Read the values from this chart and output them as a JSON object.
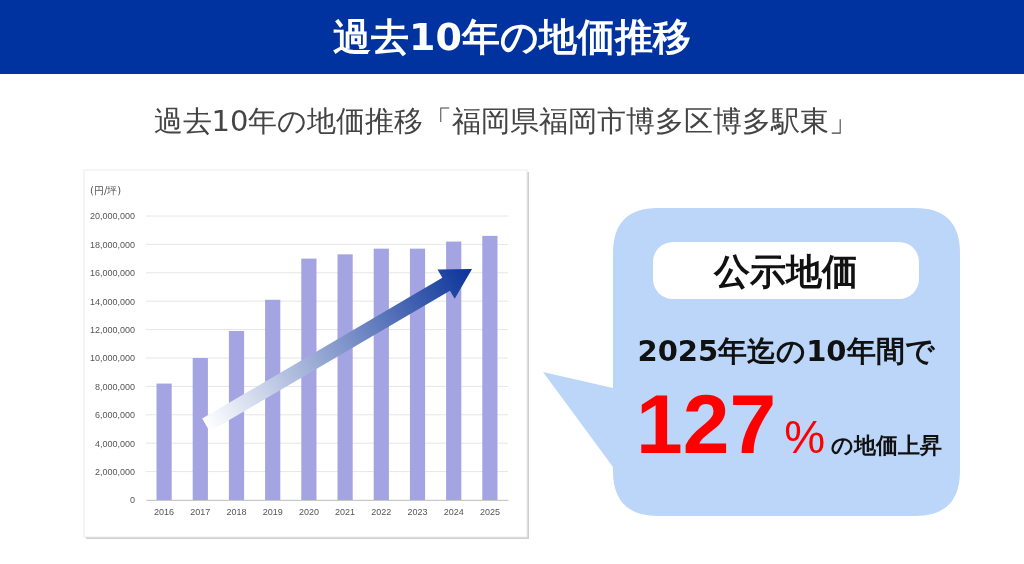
{
  "chart_data": {
    "type": "bar",
    "title": "過去10年の地価推移",
    "subtitle": "過去10年の地価推移「福岡県福岡市博多区博多駅東」",
    "ylabel": "(円/坪)",
    "categories": [
      "2016",
      "2017",
      "2018",
      "2019",
      "2020",
      "2021",
      "2022",
      "2023",
      "2024",
      "2025"
    ],
    "values": [
      8200000,
      10000000,
      11900000,
      14100000,
      17000000,
      17300000,
      17700000,
      17700000,
      18200000,
      18600000
    ],
    "color": "#a4a4e2",
    "ylim": [
      0,
      20000000
    ],
    "yticks": [
      0,
      {
        "value": 2000000,
        "label": "2,000,000"
      },
      {
        "value": 4000000,
        "label": "4,000,000"
      },
      {
        "value": 6000000,
        "label": "6,000,000"
      },
      {
        "value": 8000000,
        "label": "8,000,000"
      },
      {
        "value": 10000000,
        "label": "10,000,000"
      },
      {
        "value": 12000000,
        "label": "12,000,000"
      },
      {
        "value": 14000000,
        "label": "14,000,000"
      },
      {
        "value": 16000000,
        "label": "16,000,000"
      },
      {
        "value": 18000000,
        "label": "18,000,000"
      },
      {
        "value": 20000000,
        "label": "20,000,000"
      }
    ],
    "grid": "y",
    "annotations": [
      "公示地価",
      "2025年迄の10年間で",
      "127%の地価上昇"
    ]
  }
}
